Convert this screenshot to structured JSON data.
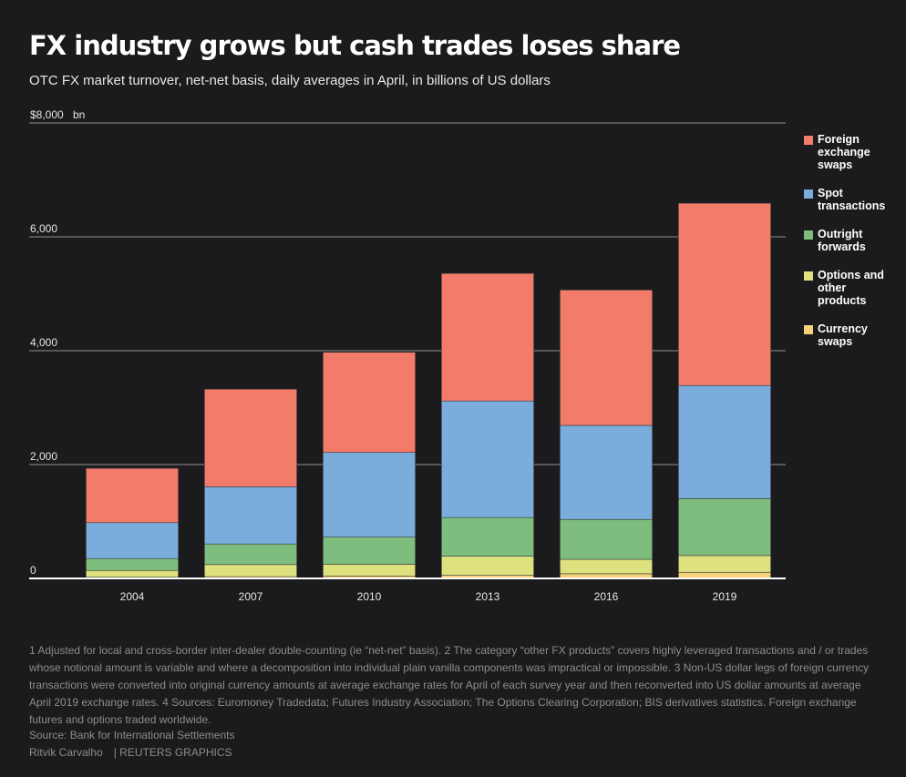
{
  "title": "FX industry grows but cash trades loses share",
  "subtitle": "OTC FX market turnover, net-net basis, daily averages in April, in billions of US dollars",
  "chart_data": {
    "type": "bar",
    "stacked": true,
    "categories": [
      "2004",
      "2007",
      "2010",
      "2013",
      "2016",
      "2019"
    ],
    "series": [
      {
        "name": "Currency swaps",
        "color": "#f5d17a",
        "values": [
          21,
          31,
          43,
          54,
          82,
          108
        ]
      },
      {
        "name": "Options and other products",
        "color": "#dde27e",
        "values": [
          119,
          212,
          207,
          337,
          254,
          294
        ]
      },
      {
        "name": "Outright forwards",
        "color": "#7ebd7e",
        "values": [
          209,
          362,
          475,
          679,
          700,
          999
        ]
      },
      {
        "name": "Spot transactions",
        "color": "#7aacdc",
        "values": [
          631,
          1005,
          1488,
          2047,
          1652,
          1987
        ]
      },
      {
        "name": "Foreign exchange swaps",
        "color": "#f27b69",
        "values": [
          954,
          1714,
          1759,
          2240,
          2378,
          3202
        ]
      }
    ],
    "legend_order": [
      "Foreign exchange swaps",
      "Spot transactions",
      "Outright forwards",
      "Options and other products",
      "Currency swaps"
    ],
    "ylim": [
      0,
      8000
    ],
    "yticks": [
      0,
      2000,
      4000,
      6000,
      8000
    ],
    "ytick_labels": [
      "0",
      "2,000",
      "4,000",
      "6,000",
      "$8,000"
    ],
    "yunit": "bn",
    "grid": true,
    "legend_position": "right"
  },
  "footnote": "1 Adjusted for local and cross-border inter-dealer double-counting (ie “net-net” basis). 2 The category “other FX products” covers highly leveraged transactions and / or trades whose notional amount is variable and where a decomposition into individual plain vanilla components was impractical or impossible. 3 Non-US dollar legs of foreign currency transactions were converted into original currency amounts at average exchange rates for April of each survey year and then reconverted into US dollar amounts at average April 2019 exchange rates. 4 Sources: Euromoney Tradedata; Futures Industry Association; The Options Clearing Corporation; BIS derivatives statistics. Foreign exchange futures and options traded worldwide.",
  "source": "Source: Bank for International Settlements",
  "credit": {
    "author": "Ritvik Carvalho",
    "org": "| REUTERS GRAPHICS"
  }
}
